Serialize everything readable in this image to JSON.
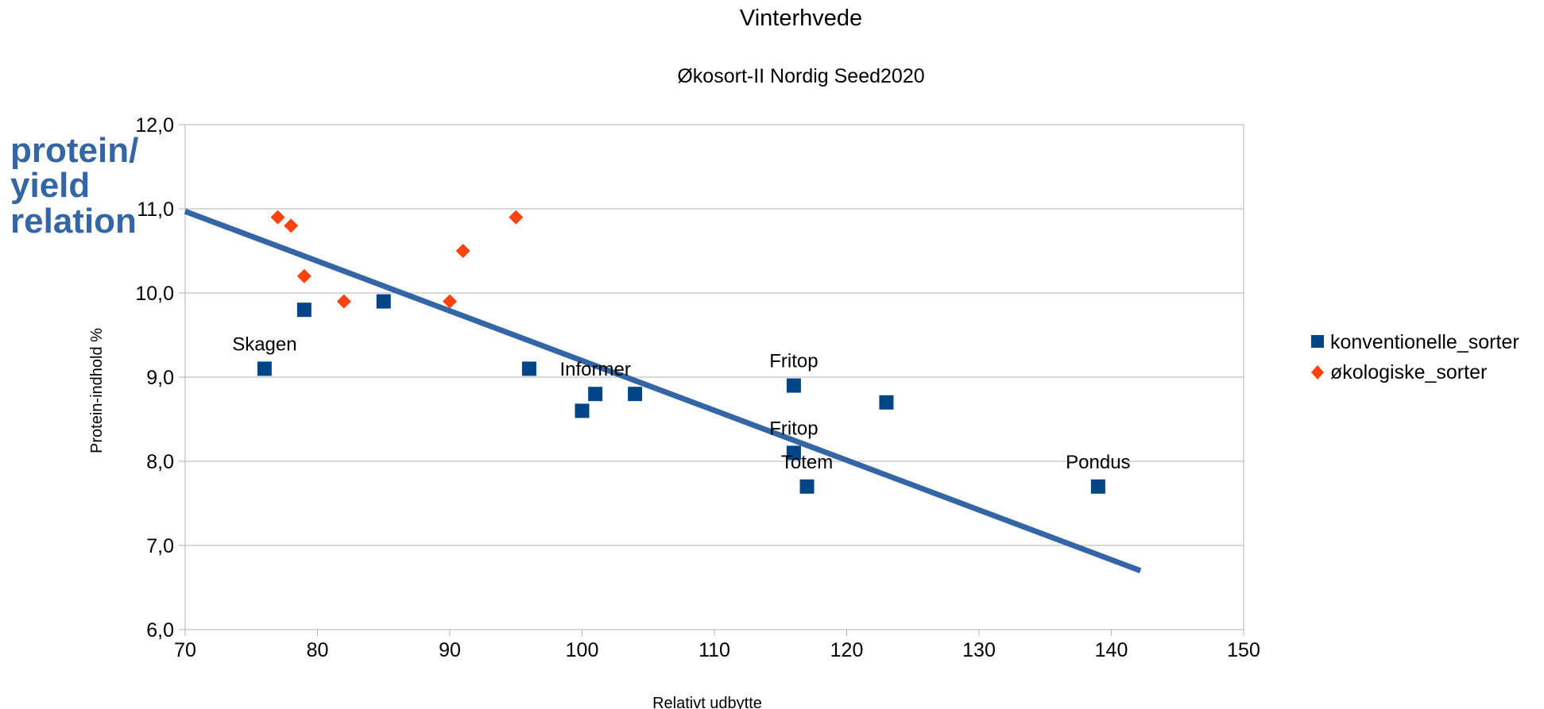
{
  "chart_data": {
    "type": "scatter",
    "title": "Vinterhvede",
    "subtitle": "Økosort-II Nordig Seed2020",
    "xlabel": "Relativt udbytte",
    "ylabel": "Protein-indhold %",
    "xlim": [
      70,
      150
    ],
    "ylim": [
      6.0,
      12.0
    ],
    "x_ticks": [
      "70",
      "80",
      "90",
      "100",
      "110",
      "120",
      "130",
      "140",
      "150"
    ],
    "y_ticks": [
      "6,0",
      "7,0",
      "8,0",
      "9,0",
      "10,0",
      "11,0",
      "12,0"
    ],
    "grid": "horizontal",
    "legend_position": "right",
    "series": [
      {
        "name": "konventionelle_sorter",
        "marker": "square",
        "color": "#004586",
        "points": [
          {
            "x": 76,
            "y": 9.1,
            "label": "Skagen"
          },
          {
            "x": 79,
            "y": 9.8,
            "label": ""
          },
          {
            "x": 85,
            "y": 9.9,
            "label": ""
          },
          {
            "x": 96,
            "y": 9.1,
            "label": ""
          },
          {
            "x": 100,
            "y": 8.6,
            "label": ""
          },
          {
            "x": 101,
            "y": 8.8,
            "label": "Informer"
          },
          {
            "x": 104,
            "y": 8.8,
            "label": ""
          },
          {
            "x": 116,
            "y": 8.9,
            "label": "Fritop"
          },
          {
            "x": 116,
            "y": 8.1,
            "label": "Fritop"
          },
          {
            "x": 117,
            "y": 7.7,
            "label": "Totem"
          },
          {
            "x": 123,
            "y": 8.7,
            "label": ""
          },
          {
            "x": 139,
            "y": 7.7,
            "label": "Pondus"
          }
        ]
      },
      {
        "name": "økologiske_sorter",
        "marker": "diamond",
        "color": "#ff420e",
        "points": [
          {
            "x": 77,
            "y": 10.9
          },
          {
            "x": 78,
            "y": 10.8
          },
          {
            "x": 79,
            "y": 10.2
          },
          {
            "x": 82,
            "y": 9.9
          },
          {
            "x": 90,
            "y": 9.9
          },
          {
            "x": 91,
            "y": 10.5
          },
          {
            "x": 95,
            "y": 10.9
          }
        ]
      }
    ],
    "trendline": {
      "x": [
        70,
        142.2
      ],
      "y": [
        10.97,
        6.7
      ],
      "color": "#3465a4"
    },
    "annotation": {
      "lines": [
        "protein/",
        "yield",
        "relation"
      ],
      "color": "#3465a4"
    }
  }
}
